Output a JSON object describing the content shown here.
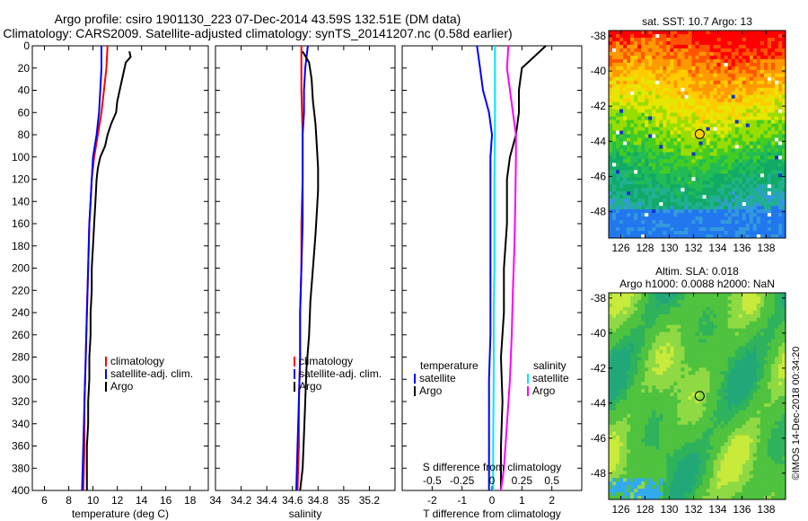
{
  "title": {
    "line1": "Argo profile: csiro 1901130_223 07-Dec-2014 43.59S 132.51E (DM data)",
    "line2": "Climatology: CARS2009. Satellite-adjusted climatology: synTS_20141207.nc (0.58d earlier)"
  },
  "depth_ticks": [
    0,
    20,
    40,
    60,
    80,
    100,
    120,
    140,
    160,
    180,
    200,
    220,
    240,
    260,
    280,
    300,
    320,
    340,
    360,
    380,
    400
  ],
  "chart_data": [
    {
      "type": "line",
      "id": "temperature",
      "title": "",
      "xlabel": "temperature (deg C)",
      "ylabel": "",
      "xlim": [
        5,
        19.5
      ],
      "ylim": [
        0,
        400
      ],
      "xticks": [
        6,
        8,
        10,
        12,
        14,
        16,
        18
      ],
      "legend": [
        "climatology",
        "satellite-adj. clim.",
        "Argo"
      ],
      "series": [
        {
          "name": "climatology",
          "color": "#ff0000",
          "points": [
            [
              11.2,
              0
            ],
            [
              11.1,
              20
            ],
            [
              10.9,
              40
            ],
            [
              10.7,
              60
            ],
            [
              10.4,
              80
            ],
            [
              10.1,
              100
            ],
            [
              9.9,
              120
            ],
            [
              9.8,
              140
            ],
            [
              9.7,
              160
            ],
            [
              9.6,
              200
            ],
            [
              9.5,
              240
            ],
            [
              9.4,
              280
            ],
            [
              9.3,
              320
            ],
            [
              9.3,
              360
            ],
            [
              9.2,
              400
            ]
          ]
        },
        {
          "name": "satellite-adj. clim.",
          "color": "#0000ff",
          "points": [
            [
              10.7,
              0
            ],
            [
              10.7,
              20
            ],
            [
              10.6,
              40
            ],
            [
              10.5,
              60
            ],
            [
              10.3,
              80
            ],
            [
              10.0,
              100
            ],
            [
              9.9,
              120
            ],
            [
              9.8,
              140
            ],
            [
              9.7,
              160
            ],
            [
              9.6,
              200
            ],
            [
              9.5,
              240
            ],
            [
              9.4,
              280
            ],
            [
              9.3,
              320
            ],
            [
              9.2,
              360
            ],
            [
              9.1,
              400
            ]
          ]
        },
        {
          "name": "Argo",
          "color": "#000000",
          "points": [
            [
              13.0,
              5
            ],
            [
              13.1,
              10
            ],
            [
              12.7,
              15
            ],
            [
              12.4,
              30
            ],
            [
              12.2,
              40
            ],
            [
              12.0,
              50
            ],
            [
              11.9,
              60
            ],
            [
              11.5,
              70
            ],
            [
              11.2,
              80
            ],
            [
              11.0,
              90
            ],
            [
              10.6,
              100
            ],
            [
              10.4,
              110
            ],
            [
              10.3,
              120
            ],
            [
              10.2,
              140
            ],
            [
              10.1,
              160
            ],
            [
              10.0,
              180
            ],
            [
              9.9,
              200
            ],
            [
              9.9,
              220
            ],
            [
              9.8,
              240
            ],
            [
              9.8,
              260
            ],
            [
              9.7,
              280
            ],
            [
              9.7,
              300
            ],
            [
              9.6,
              320
            ],
            [
              9.6,
              340
            ],
            [
              9.5,
              360
            ],
            [
              9.5,
              380
            ],
            [
              9.5,
              400
            ]
          ]
        }
      ]
    },
    {
      "type": "line",
      "id": "salinity",
      "title": "",
      "xlabel": "salinity",
      "ylabel": "",
      "xlim": [
        34.0,
        35.4
      ],
      "ylim": [
        0,
        400
      ],
      "xticks": [
        34,
        34.2,
        34.4,
        34.6,
        34.8,
        35,
        35.2
      ],
      "legend": [
        "climatology",
        "satellite-adj. clim.",
        "Argo"
      ],
      "series": [
        {
          "name": "climatology",
          "color": "#ff0000",
          "points": [
            [
              34.67,
              0
            ],
            [
              34.67,
              40
            ],
            [
              34.68,
              80
            ],
            [
              34.68,
              120
            ],
            [
              34.67,
              160
            ],
            [
              34.67,
              200
            ],
            [
              34.66,
              240
            ],
            [
              34.66,
              280
            ],
            [
              34.65,
              320
            ],
            [
              34.65,
              360
            ],
            [
              34.64,
              400
            ]
          ]
        },
        {
          "name": "satellite-adj. clim.",
          "color": "#0000ff",
          "points": [
            [
              34.72,
              0
            ],
            [
              34.7,
              20
            ],
            [
              34.69,
              40
            ],
            [
              34.69,
              60
            ],
            [
              34.68,
              80
            ],
            [
              34.68,
              120
            ],
            [
              34.68,
              160
            ],
            [
              34.67,
              200
            ],
            [
              34.66,
              240
            ],
            [
              34.66,
              280
            ],
            [
              34.65,
              320
            ],
            [
              34.64,
              360
            ],
            [
              34.63,
              400
            ]
          ]
        },
        {
          "name": "Argo",
          "color": "#000000",
          "points": [
            [
              34.68,
              5
            ],
            [
              34.73,
              15
            ],
            [
              34.75,
              30
            ],
            [
              34.76,
              50
            ],
            [
              34.78,
              70
            ],
            [
              34.79,
              90
            ],
            [
              34.8,
              110
            ],
            [
              34.8,
              130
            ],
            [
              34.79,
              150
            ],
            [
              34.78,
              170
            ],
            [
              34.76,
              200
            ],
            [
              34.74,
              230
            ],
            [
              34.73,
              260
            ],
            [
              34.71,
              290
            ],
            [
              34.7,
              320
            ],
            [
              34.69,
              350
            ],
            [
              34.68,
              380
            ],
            [
              34.66,
              400
            ]
          ]
        }
      ]
    },
    {
      "type": "line",
      "id": "difference",
      "title": "",
      "xlabel": "T difference from climatology",
      "x2label": "S difference from climatology",
      "ylabel": "",
      "xlim": [
        -3,
        3
      ],
      "ylim": [
        0,
        400
      ],
      "xticks": [
        -2,
        -1,
        0,
        1,
        2
      ],
      "x2ticks": [
        -0.5,
        -0.25,
        0,
        0.25,
        0.5
      ],
      "x2labels": [
        "-0.5",
        "-0.25",
        "0",
        "0.25",
        "0.5"
      ],
      "legend_temperature_title": "temperature",
      "legend_salinity_title": "salinity",
      "legend": [
        "satellite",
        "Argo",
        "satellite",
        "Argo"
      ],
      "series": [
        {
          "name": "T satellite",
          "color": "#0000ff",
          "points": [
            [
              -0.5,
              0
            ],
            [
              -0.4,
              20
            ],
            [
              -0.3,
              40
            ],
            [
              -0.1,
              60
            ],
            [
              0.0,
              80
            ],
            [
              -0.05,
              100
            ],
            [
              -0.05,
              140
            ],
            [
              -0.05,
              200
            ],
            [
              -0.05,
              260
            ],
            [
              -0.1,
              300
            ],
            [
              -0.1,
              340
            ],
            [
              -0.1,
              400
            ]
          ]
        },
        {
          "name": "T Argo",
          "color": "#000000",
          "points": [
            [
              1.8,
              0
            ],
            [
              1.4,
              10
            ],
            [
              1.0,
              20
            ],
            [
              0.9,
              40
            ],
            [
              0.9,
              60
            ],
            [
              0.8,
              80
            ],
            [
              0.6,
              100
            ],
            [
              0.5,
              120
            ],
            [
              0.5,
              160
            ],
            [
              0.4,
              200
            ],
            [
              0.4,
              240
            ],
            [
              0.3,
              280
            ],
            [
              0.35,
              320
            ],
            [
              0.3,
              360
            ],
            [
              0.3,
              400
            ]
          ]
        },
        {
          "name": "S satellite",
          "color": "#00e5ff",
          "points": [
            [
              0.1,
              0
            ],
            [
              0.1,
              40
            ],
            [
              0.1,
              80
            ],
            [
              0.08,
              120
            ],
            [
              0.08,
              160
            ],
            [
              0.08,
              200
            ],
            [
              0.06,
              240
            ],
            [
              0.06,
              280
            ],
            [
              0.05,
              320
            ],
            [
              0.04,
              360
            ],
            [
              0.04,
              400
            ]
          ]
        },
        {
          "name": "S Argo",
          "color": "#ff00ff",
          "points": [
            [
              0.55,
              0
            ],
            [
              0.5,
              20
            ],
            [
              0.6,
              40
            ],
            [
              0.7,
              60
            ],
            [
              0.8,
              80
            ],
            [
              0.8,
              100
            ],
            [
              0.78,
              140
            ],
            [
              0.75,
              180
            ],
            [
              0.7,
              220
            ],
            [
              0.66,
              260
            ],
            [
              0.6,
              300
            ],
            [
              0.5,
              340
            ],
            [
              0.4,
              380
            ],
            [
              0.3,
              400
            ]
          ]
        }
      ]
    },
    {
      "type": "heatmap",
      "id": "sst_map",
      "title": "sat. SST: 10.7 Argo: 13",
      "xlabel": "",
      "ylabel": "",
      "xlim": [
        125,
        139.6
      ],
      "ylim": [
        -49.5,
        -37.7
      ],
      "xticks": [
        126,
        128,
        130,
        132,
        134,
        136,
        138
      ],
      "yticks": [
        -38,
        -40,
        -42,
        -44,
        -46,
        -48
      ],
      "marker": {
        "lon": 132.51,
        "lat": -43.59,
        "fill": "#ffd000"
      }
    },
    {
      "type": "heatmap",
      "id": "sla_map",
      "title": "Altim. SLA: 0.018",
      "subtitle": "Argo h1000: 0.0088 h2000: NaN",
      "xlabel": "",
      "ylabel": "",
      "xlim": [
        125,
        139.6
      ],
      "ylim": [
        -49.5,
        -37.7
      ],
      "xticks": [
        126,
        128,
        130,
        132,
        134,
        136,
        138
      ],
      "yticks": [
        -38,
        -40,
        -42,
        -44,
        -46,
        -48
      ],
      "marker": {
        "lon": 132.51,
        "lat": -43.59,
        "fill": "none"
      }
    }
  ],
  "watermark": "©IMOS 14-Dec-2018 00:34:20"
}
